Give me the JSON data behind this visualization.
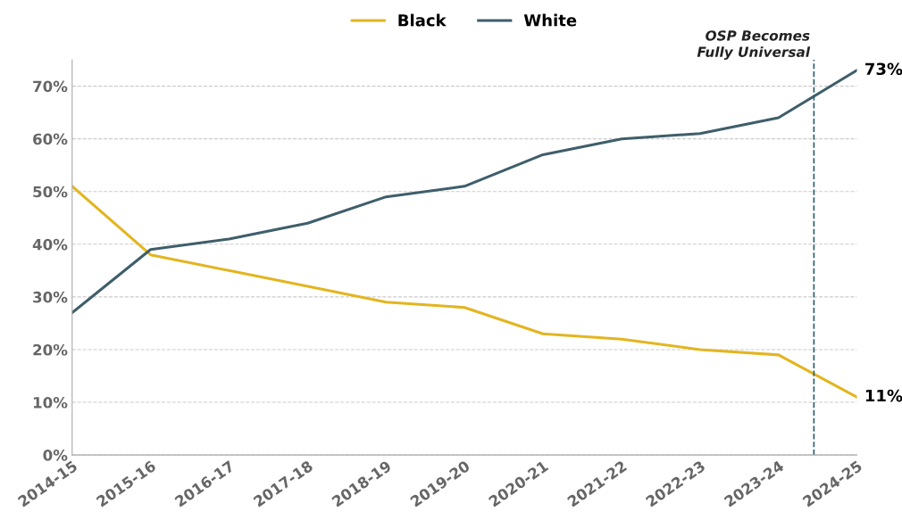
{
  "chart_data": {
    "type": "line",
    "x": [
      "2014",
      "2015",
      "2016",
      "2017",
      "2018",
      "2019",
      "2020",
      "2021",
      "2022",
      "2023",
      "2024"
    ],
    "xlim": [
      "2014",
      "2024"
    ],
    "xticks": [
      {
        "value": "2014",
        "label": "2014-15"
      },
      {
        "value": "2015",
        "label": "2015-16"
      },
      {
        "value": "2016",
        "label": "2016-17"
      },
      {
        "value": "2017",
        "label": "2017-18"
      },
      {
        "value": "2018",
        "label": "2018-19"
      },
      {
        "value": "2019",
        "label": "2019-20"
      },
      {
        "value": "2020",
        "label": "2020-21"
      },
      {
        "value": "2021",
        "label": "2021-22"
      },
      {
        "value": "2022",
        "label": "2022-23"
      },
      {
        "value": "2023",
        "label": "2023-24"
      },
      {
        "value": "2024",
        "label": "2024-25"
      }
    ],
    "series": [
      {
        "name": "Black",
        "color": "#e3b51f",
        "values": [
          51,
          38,
          35,
          32,
          29,
          28,
          23,
          22,
          20,
          19,
          11
        ],
        "value_labels": [
          null,
          null,
          null,
          null,
          null,
          null,
          null,
          null,
          null,
          null,
          "11%"
        ]
      },
      {
        "name": "White",
        "color": "#3e5e6a",
        "values": [
          27,
          39,
          41,
          44,
          49,
          51,
          57,
          60,
          61,
          64,
          73
        ],
        "value_labels": [
          null,
          null,
          null,
          null,
          null,
          null,
          null,
          null,
          null,
          null,
          "73%"
        ]
      }
    ],
    "ylim": [
      0,
      75
    ],
    "yticks": [
      {
        "value": 0,
        "label": "0%"
      },
      {
        "value": 10,
        "label": "10%"
      },
      {
        "value": 20,
        "label": "20%"
      },
      {
        "value": 30,
        "label": "30%"
      },
      {
        "value": 40,
        "label": "40%"
      },
      {
        "value": 50,
        "label": "50%"
      },
      {
        "value": 60,
        "label": "60%"
      },
      {
        "value": 70,
        "label": "70%"
      }
    ],
    "ref_lines": [
      {
        "axis": "x",
        "value": "2023-06-15",
        "label": "OSP Becomes\nFully Universal",
        "color": "#2a5d6e",
        "line_style": "dashed"
      }
    ],
    "grid": "y",
    "legend": "top",
    "marker": "none",
    "line_style": "solid"
  }
}
